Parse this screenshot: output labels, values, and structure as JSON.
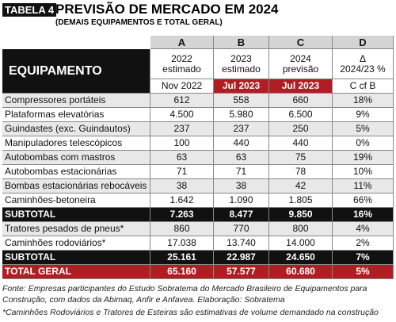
{
  "header": {
    "tag": "TABELA 4",
    "title": "PREVISÃO DE MERCADO EM 2024",
    "subtitle": "(DEMAIS EQUIPAMENTOS  E TOTAL GERAL)"
  },
  "table": {
    "column_letters": [
      "A",
      "B",
      "C",
      "D"
    ],
    "equipment_label": "EQUIPAMENTO",
    "column_years": [
      [
        "2022",
        "estimado"
      ],
      [
        "2023",
        "estimado"
      ],
      [
        "2024",
        "previsão"
      ],
      [
        "Δ",
        "2024/23 %"
      ]
    ],
    "column_dates": [
      "Nov 2022",
      "Jul 2023",
      "Jul 2023",
      "C cf B"
    ],
    "rows": [
      [
        "Compressores portáteis",
        "612",
        "558",
        "660",
        "18%"
      ],
      [
        "Plataformas elevatórias",
        "4.500",
        "5.980",
        "6.500",
        "9%"
      ],
      [
        "Guindastes (exc. Guindautos)",
        "237",
        "237",
        "250",
        "5%"
      ],
      [
        "Manipuladores telescópicos",
        "100",
        "440",
        "440",
        "0%"
      ],
      [
        "Autobombas com mastros",
        "63",
        "63",
        "75",
        "19%"
      ],
      [
        "Autobombas estacionárias",
        "71",
        "71",
        "78",
        "10%"
      ],
      [
        "Bombas estacionárias rebocáveis",
        "38",
        "38",
        "42",
        "11%"
      ],
      [
        "Caminhões-betoneira",
        "1.642",
        "1.090",
        "1.805",
        "66%"
      ]
    ],
    "subtotal_1": [
      "SUBTOTAL",
      "7.263",
      "8.477",
      "9.850",
      "16%"
    ],
    "rows_2": [
      [
        "Tratores pesados de pneus*",
        "860",
        "770",
        "800",
        "4%"
      ],
      [
        "Caminhões rodoviários*",
        "17.038",
        "13.740",
        "14.000",
        "2%"
      ]
    ],
    "subtotal_2": [
      "SUBTOTAL",
      "25.161",
      "22.987",
      "24.650",
      "7%"
    ],
    "total": [
      "TOTAL GERAL",
      "65.160",
      "57.577",
      "60.680",
      "5%"
    ]
  },
  "footnotes": [
    "Fonte: Empresas participantes do Estudo Sobratema do Mercado Brasileiro de Equipamentos para Construção, com dados da Abimaq, Anfir e Anfavea. Elaboração: Sobratema",
    "*Caminhões Rodoviários e Tratores de Esteiras são estimativas de volume demandado na construção"
  ]
}
